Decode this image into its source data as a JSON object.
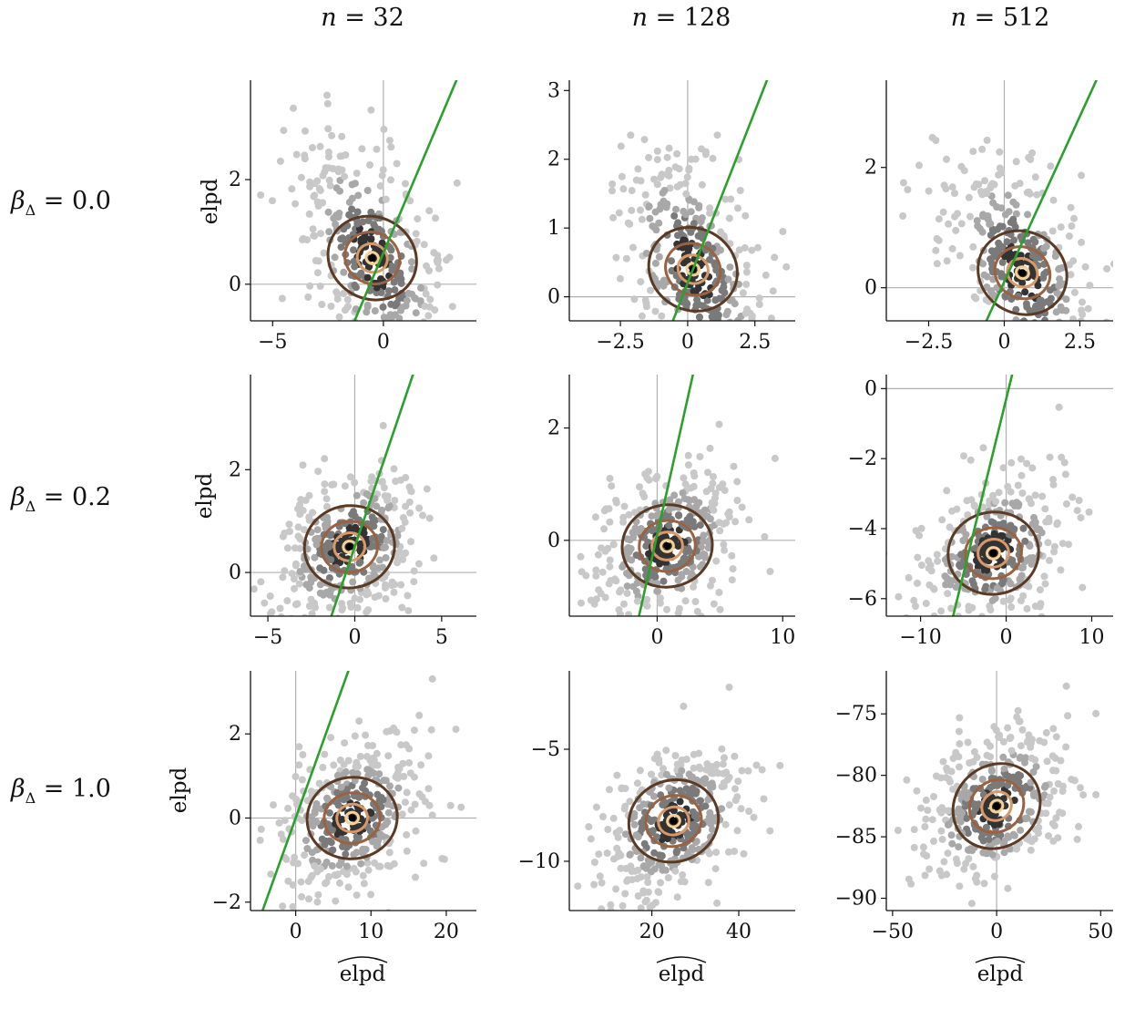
{
  "figure": {
    "columns": [
      {
        "symbol": "n",
        "value": "32"
      },
      {
        "symbol": "n",
        "value": "128"
      },
      {
        "symbol": "n",
        "value": "512"
      }
    ],
    "rows": [
      {
        "symbol": "β",
        "sub": "Δ",
        "value": "0.0"
      },
      {
        "symbol": "β",
        "sub": "Δ",
        "value": "0.2"
      },
      {
        "symbol": "β",
        "sub": "Δ",
        "value": "1.0"
      }
    ],
    "ylabel": "elpd",
    "xlabel": "elpd",
    "xlabel_accent": "widehat"
  },
  "colors": {
    "hexbin_light": "#c8c8c8",
    "hexbin_dark": "#111111",
    "contour_levels": [
      "#5b3a24",
      "#9a6240",
      "#d99868",
      "#f5cf93"
    ],
    "reference_line": "#2ca02c",
    "zero_line": "#b0b0b0"
  },
  "chart_data": [
    {
      "type": "scatter",
      "row": 0,
      "col": 0,
      "xlim": [
        -6,
        4.2
      ],
      "ylim": [
        -0.7,
        3.9
      ],
      "xticks": [
        -5,
        0
      ],
      "yticks": [
        0,
        2
      ],
      "center": [
        -0.5,
        0.5
      ],
      "ref_line": {
        "intercept": 0.6,
        "slope": 1.0
      }
    },
    {
      "type": "scatter",
      "row": 0,
      "col": 1,
      "xlim": [
        -4.4,
        4.0
      ],
      "ylim": [
        -0.35,
        3.15
      ],
      "xticks": [
        -2.5,
        0.0,
        2.5
      ],
      "yticks": [
        0,
        1,
        2,
        3
      ],
      "center": [
        0.2,
        0.4
      ],
      "ref_line": {
        "intercept": 0.2,
        "slope": 1.0
      }
    },
    {
      "type": "scatter",
      "row": 0,
      "col": 2,
      "xlim": [
        -3.9,
        3.6
      ],
      "ylim": [
        -0.55,
        3.45
      ],
      "xticks": [
        -2.5,
        0.0,
        2.5
      ],
      "yticks": [
        0,
        2
      ],
      "center": [
        0.6,
        0.25
      ],
      "ref_line": {
        "intercept": 0.1,
        "slope": 1.1
      }
    },
    {
      "type": "scatter",
      "row": 1,
      "col": 0,
      "xlim": [
        -6,
        7
      ],
      "ylim": [
        -0.85,
        3.85
      ],
      "xticks": [
        -5,
        0,
        5
      ],
      "yticks": [
        0,
        2
      ],
      "center": [
        -0.3,
        0.5
      ],
      "ref_line": {
        "intercept": 0.5,
        "slope": 1.0
      }
    },
    {
      "type": "scatter",
      "row": 1,
      "col": 1,
      "xlim": [
        -7,
        11
      ],
      "ylim": [
        -1.35,
        2.95
      ],
      "xticks": [
        0,
        10
      ],
      "yticks": [
        0,
        2
      ],
      "center": [
        0.8,
        -0.1
      ],
      "ref_line": {
        "intercept": 0.1,
        "slope": 1.0
      }
    },
    {
      "type": "scatter",
      "row": 1,
      "col": 2,
      "xlim": [
        -14,
        12.5
      ],
      "ylim": [
        -6.5,
        0.4
      ],
      "xticks": [
        -10,
        0,
        10
      ],
      "yticks": [
        -6,
        -4,
        -2,
        0
      ],
      "center": [
        -1.5,
        -4.7
      ],
      "ref_line": {
        "intercept": -0.3,
        "slope": 1.0
      }
    },
    {
      "type": "scatter",
      "row": 2,
      "col": 0,
      "xlim": [
        -6,
        24
      ],
      "ylim": [
        -2.2,
        3.5
      ],
      "xticks": [
        0,
        10,
        20
      ],
      "yticks": [
        -2,
        0,
        2
      ],
      "center": [
        7.5,
        0.0
      ],
      "ref_line": {
        "intercept": 0.0,
        "slope": 0.5
      }
    },
    {
      "type": "scatter",
      "row": 2,
      "col": 1,
      "xlim": [
        1,
        53
      ],
      "ylim": [
        -12.2,
        -1.5
      ],
      "xticks": [
        20,
        40
      ],
      "yticks": [
        -10,
        -5
      ],
      "center": [
        25,
        -8.2
      ],
      "ref_line": null
    },
    {
      "type": "scatter",
      "row": 2,
      "col": 2,
      "xlim": [
        -53,
        56
      ],
      "ylim": [
        -91,
        -71.5
      ],
      "xticks": [
        -50,
        0,
        50
      ],
      "yticks": [
        -90,
        -85,
        -80,
        -75
      ],
      "center": [
        0,
        -82.5
      ],
      "ref_line": null
    }
  ]
}
